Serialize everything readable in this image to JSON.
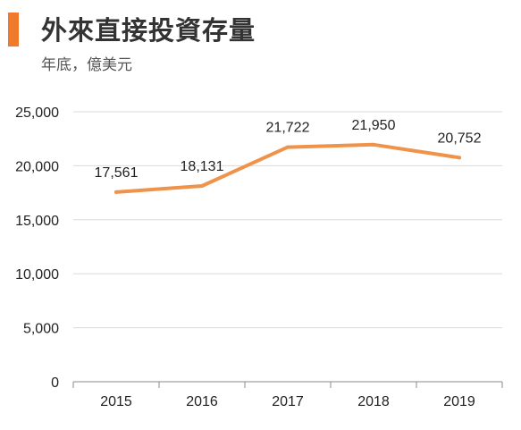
{
  "header": {
    "title": "外來直接投資存量",
    "subtitle": "年底，億美元"
  },
  "colors": {
    "accent": "#f07a2b",
    "line": "#f0934a",
    "gridline": "#d9d9d9",
    "axis": "#8a8a8a",
    "text": "#222222"
  },
  "chart_data": {
    "type": "line",
    "title": "外來直接投資存量",
    "subtitle": "年底，億美元",
    "categories": [
      "2015",
      "2016",
      "2017",
      "2018",
      "2019"
    ],
    "values": [
      17561,
      18131,
      21722,
      21950,
      20752
    ],
    "data_labels": [
      "17,561",
      "18,131",
      "21,722",
      "21,950",
      "20,752"
    ],
    "ylim": [
      0,
      25000
    ],
    "yticks": [
      0,
      5000,
      10000,
      15000,
      20000,
      25000
    ],
    "ytick_labels": [
      "0",
      "5,000",
      "10,000",
      "15,000",
      "20,000",
      "25,000"
    ],
    "xlabel": "",
    "ylabel": "",
    "grid": true,
    "legend": "none"
  }
}
